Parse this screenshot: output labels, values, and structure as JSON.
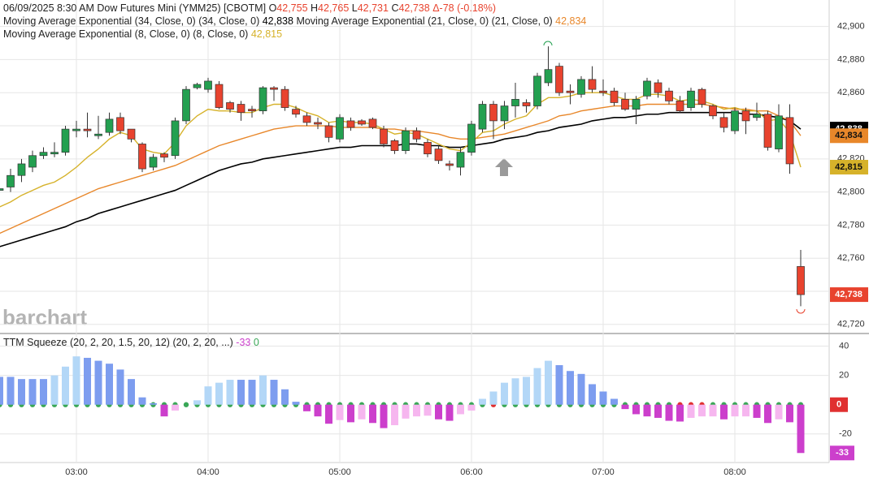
{
  "header": {
    "date": "06/09/2025",
    "time": "8:30 AM",
    "symbol": "Dow Futures Mini (YMM25) [CBOTM]",
    "open_key": "O",
    "open": "42,755",
    "high_key": "H",
    "high": "42,765",
    "low_key": "L",
    "low": "42,731",
    "close_key": "C",
    "close": "42,738",
    "change": "Δ-78 (-0.18%)"
  },
  "chart_data": [
    {
      "type": "candlestick",
      "watermark": "barchart",
      "categories": [
        null,
        null,
        null,
        null,
        null,
        null,
        null,
        "03:00",
        null,
        null,
        null,
        null,
        null,
        null,
        null,
        null,
        null,
        null,
        null,
        "04:00",
        null,
        null,
        null,
        null,
        null,
        null,
        null,
        null,
        null,
        null,
        null,
        "05:00",
        null,
        null,
        null,
        null,
        null,
        null,
        null,
        null,
        null,
        null,
        null,
        "06:00",
        null,
        null,
        null,
        null,
        null,
        null,
        null,
        null,
        null,
        null,
        null,
        "07:00",
        null,
        null,
        null,
        null,
        null,
        null,
        null,
        null,
        null,
        null,
        null,
        "08:00",
        null,
        null,
        null,
        null,
        null,
        null
      ],
      "open": [
        42801,
        42803,
        42810,
        42815,
        42822,
        42823,
        42824,
        42837,
        42838,
        42834,
        42836,
        42845,
        42838,
        42829,
        42815,
        42823,
        42822,
        42843,
        42863,
        42862,
        42865,
        42854,
        42853,
        42850,
        42849,
        42863,
        42862,
        42850,
        42846,
        42842,
        42840,
        42832,
        42843,
        42843,
        42844,
        42838,
        42831,
        42825,
        42837,
        42830,
        42826,
        42817,
        42815,
        42824,
        42838,
        42853,
        42843,
        42852,
        42854,
        42852,
        42866,
        42876,
        42861,
        42859,
        42868,
        42861,
        42861,
        42856,
        42850,
        42858,
        42866,
        42861,
        42855,
        42851,
        42862,
        42852,
        42845,
        42837,
        42849,
        42845,
        42847,
        42826,
        42845,
        42755
      ],
      "high": [
        42802,
        42814,
        42820,
        42825,
        42827,
        42830,
        42840,
        42843,
        42848,
        42846,
        42848,
        42848,
        42838,
        42830,
        42823,
        42824,
        42845,
        42864,
        42866,
        42869,
        42867,
        42855,
        42855,
        42852,
        42864,
        42864,
        42864,
        42852,
        42848,
        42845,
        42842,
        42847,
        42845,
        42844,
        42845,
        42840,
        42832,
        42839,
        42839,
        42832,
        42828,
        42819,
        42827,
        42843,
        42855,
        42855,
        42855,
        42866,
        42856,
        42872,
        42888,
        42878,
        42865,
        42870,
        42876,
        42868,
        42863,
        42860,
        42858,
        42869,
        42868,
        42863,
        42858,
        42863,
        42863,
        42853,
        42848,
        42851,
        42851,
        42854,
        42849,
        42853,
        42853,
        42765
      ],
      "low": [
        42801,
        42800,
        42806,
        42812,
        42820,
        42821,
        42822,
        42833,
        42833,
        42832,
        42834,
        42835,
        42830,
        42812,
        42813,
        42818,
        42820,
        42841,
        42862,
        42860,
        42850,
        42848,
        42843,
        42845,
        42847,
        42855,
        42849,
        42845,
        42840,
        42838,
        42830,
        42830,
        42837,
        42840,
        42838,
        42827,
        42823,
        42823,
        42830,
        42821,
        42817,
        42813,
        42810,
        42822,
        42836,
        42832,
        42838,
        42845,
        42848,
        42850,
        42864,
        42858,
        42853,
        42857,
        42860,
        42858,
        42852,
        42849,
        42841,
        42856,
        42857,
        42853,
        42848,
        42849,
        42851,
        42844,
        42836,
        42835,
        42835,
        42843,
        42825,
        42824,
        42811,
        42731
      ],
      "close": [
        42802,
        42810,
        42817,
        42822,
        42824,
        42824,
        42838,
        42838,
        42837,
        42835,
        42844,
        42837,
        42832,
        42814,
        42821,
        42821,
        42843,
        42862,
        42865,
        42867,
        42851,
        42850,
        42848,
        42849,
        42863,
        42862,
        42851,
        42847,
        42842,
        42841,
        42833,
        42845,
        42839,
        42841,
        42839,
        42829,
        42825,
        42837,
        42832,
        42823,
        42819,
        42816,
        42824,
        42841,
        42853,
        42843,
        42852,
        42856,
        42852,
        42870,
        42874,
        42860,
        42860,
        42868,
        42862,
        42860,
        42854,
        42850,
        42856,
        42867,
        42860,
        42855,
        42849,
        42861,
        42853,
        42846,
        42839,
        42849,
        42843,
        42847,
        42827,
        42846,
        42817,
        42738
      ],
      "last_label": "42,738",
      "up_color": "#23a050",
      "down_color": "#e8432e",
      "ylim": [
        42715,
        42916
      ],
      "yticks": [
        {
          "value": 42720,
          "label": "42,720"
        },
        {
          "value": 42740,
          "label": "42,740"
        },
        {
          "value": 42760,
          "label": "42,760"
        },
        {
          "value": 42780,
          "label": "42,780"
        },
        {
          "value": 42800,
          "label": "42,800"
        },
        {
          "value": 42820,
          "label": "42,820"
        },
        {
          "value": 42840,
          "label": "42,840"
        },
        {
          "value": 42860,
          "label": "42,860"
        },
        {
          "value": 42880,
          "label": "42,880"
        },
        {
          "value": 42900,
          "label": "42,900"
        }
      ],
      "grid": true,
      "series": [
        {
          "name": "Moving Average Exponential (34, Close, 0)",
          "params": "(34, Close, 0)",
          "color": "#000000",
          "value_label": "42,838",
          "values": [
            42767,
            42769,
            42771,
            42773,
            42775,
            42777,
            42779,
            42782,
            42784,
            42787,
            42789,
            42791,
            42793,
            42795,
            42797,
            42799,
            42801,
            42804,
            42807,
            42810,
            42813,
            42815,
            42817,
            42818,
            42820,
            42821,
            42822,
            42823,
            42824,
            42825,
            42826,
            42827,
            42827,
            42828,
            42828,
            42828,
            42828,
            42829,
            42829,
            42828,
            42828,
            42827,
            42827,
            42828,
            42829,
            42830,
            42832,
            42833,
            42834,
            42836,
            42837,
            42839,
            42840,
            42841,
            42843,
            42844,
            42845,
            42845,
            42846,
            42847,
            42847,
            42848,
            42848,
            42848,
            42848,
            42848,
            42848,
            42848,
            42847,
            42847,
            42846,
            42845,
            42843,
            42838
          ]
        },
        {
          "name": "Moving Average Exponential (21, Close, 0)",
          "params": "(21, Close, 0)",
          "color": "#e8872a",
          "value_label": "42,834",
          "values": [
            42775,
            42778,
            42781,
            42784,
            42787,
            42790,
            42793,
            42796,
            42799,
            42802,
            42804,
            42806,
            42808,
            42810,
            42812,
            42814,
            42816,
            42819,
            42822,
            42825,
            42828,
            42830,
            42832,
            42834,
            42836,
            42838,
            42839,
            42840,
            42840,
            42840,
            42840,
            42839,
            42839,
            42839,
            42839,
            42838,
            42838,
            42837,
            42837,
            42836,
            42835,
            42833,
            42832,
            42832,
            42833,
            42834,
            42835,
            42837,
            42839,
            42841,
            42843,
            42846,
            42847,
            42849,
            42850,
            42851,
            42852,
            42852,
            42852,
            42853,
            42853,
            42853,
            42853,
            42853,
            42853,
            42852,
            42851,
            42850,
            42850,
            42849,
            42849,
            42846,
            42843,
            42834
          ]
        },
        {
          "name": "Moving Average Exponential (8, Close, 0)",
          "params": "(8, Close, 0)",
          "color": "#d6b22a",
          "value_label": "42,815",
          "values": [
            42791,
            42794,
            42798,
            42801,
            42804,
            42806,
            42810,
            42815,
            42821,
            42826,
            42832,
            42836,
            42834,
            42826,
            42824,
            42823,
            42830,
            42840,
            42846,
            42850,
            42849,
            42849,
            42848,
            42848,
            42851,
            42853,
            42853,
            42851,
            42848,
            42846,
            42842,
            42843,
            42842,
            42842,
            42841,
            42838,
            42835,
            42836,
            42835,
            42832,
            42829,
            42826,
            42825,
            42830,
            42836,
            42837,
            42841,
            42844,
            42846,
            42853,
            42857,
            42857,
            42858,
            42860,
            42860,
            42860,
            42858,
            42856,
            42856,
            42859,
            42859,
            42858,
            42855,
            42856,
            42855,
            42853,
            42850,
            42851,
            42849,
            42849,
            42843,
            42844,
            42836,
            42815
          ]
        }
      ]
    },
    {
      "type": "bar",
      "title": "TTM Squeeze (20, 2, 20, 1.5, 20, 12)",
      "params": "(20, 2, 20, ...)",
      "value_label": "-33",
      "squeeze_label": "0",
      "values": [
        19,
        19,
        17.5,
        17.5,
        17.5,
        20,
        26,
        33,
        32,
        30,
        28,
        24,
        17.5,
        5,
        1,
        -8,
        -4,
        0,
        3,
        12.5,
        15,
        17,
        17,
        17,
        20,
        17,
        10.5,
        2,
        -4.5,
        -8,
        -13,
        -10.5,
        -12,
        -10,
        -12.5,
        -16,
        -14,
        -9.5,
        -8,
        -7.5,
        -10,
        -11,
        -6.5,
        -4,
        4,
        9,
        15,
        18,
        19,
        25,
        30,
        27,
        23,
        21,
        14,
        9,
        4,
        -3,
        -6.5,
        -8,
        -9,
        -11,
        -11.5,
        -9,
        -8,
        -8,
        -10,
        -8,
        -8,
        -9,
        -12.5,
        -10,
        -12,
        -33
      ],
      "squeeze": [
        0,
        0,
        0,
        0,
        0,
        0,
        0,
        0,
        0,
        0,
        0,
        0,
        0,
        0,
        0,
        0,
        0,
        0,
        0,
        0,
        0,
        0,
        0,
        0,
        0,
        0,
        0,
        0,
        0,
        0,
        0,
        0,
        0,
        0,
        0,
        0,
        0,
        0,
        0,
        0,
        0,
        0,
        0,
        0,
        0,
        1,
        0,
        0,
        0,
        0,
        0,
        0,
        0,
        0,
        0,
        0,
        0,
        0,
        0,
        0,
        0,
        0,
        1,
        1,
        1,
        0,
        0,
        0,
        0,
        0,
        0,
        0,
        0,
        0
      ],
      "colors": {
        "positive_rising": "#b3d7f7",
        "positive_falling": "#7d9def",
        "negative_falling": "#cc3fcc",
        "negative_rising": "#f6b6ef",
        "squeeze_off": "#3aa757",
        "squeeze_on": "#e03030"
      },
      "ylim": [
        -39.5,
        47.5
      ],
      "yticks": [
        -20,
        20,
        40
      ],
      "grid": true
    }
  ]
}
